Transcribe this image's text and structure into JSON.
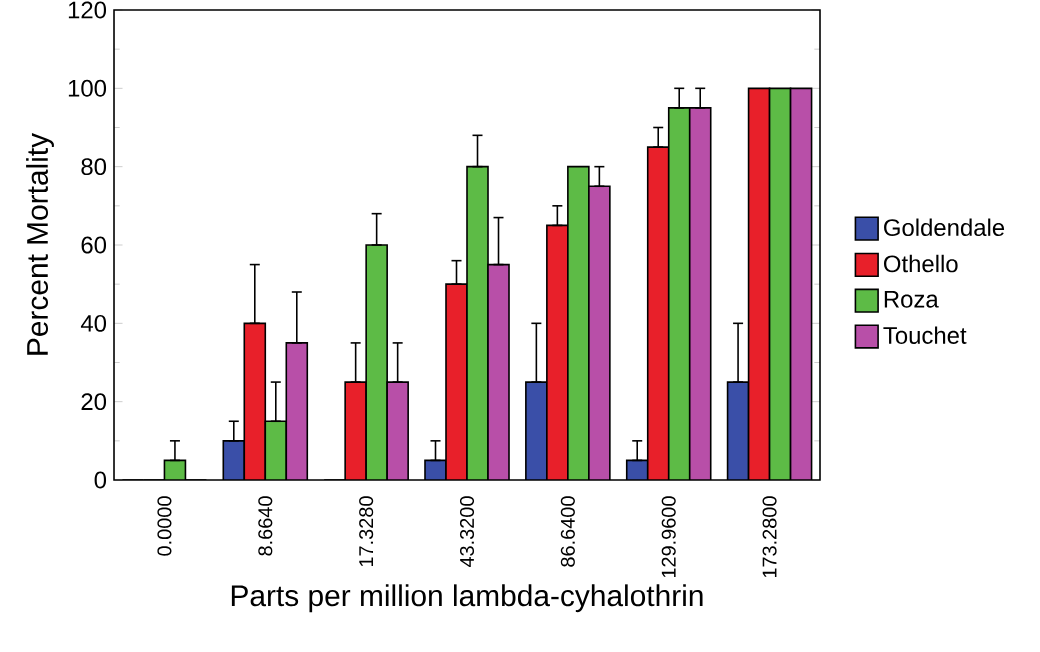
{
  "chart_data": {
    "type": "bar",
    "xlabel": "Parts per million lambda-cyhalothrin",
    "ylabel": "Percent Mortality",
    "categories": [
      "0.0000",
      "8.6640",
      "17.3280",
      "43.3200",
      "86.6400",
      "129.9600",
      "173.2800"
    ],
    "series": [
      {
        "name": "Goldendale",
        "color": "#3a4fa8",
        "values": [
          0,
          10,
          0,
          5,
          25,
          5,
          25
        ],
        "errors": [
          null,
          [
            10,
            15
          ],
          null,
          [
            5,
            10
          ],
          [
            25,
            40
          ],
          [
            5,
            10
          ],
          [
            25,
            40
          ]
        ]
      },
      {
        "name": "Othello",
        "color": "#e8202a",
        "values": [
          0,
          40,
          25,
          50,
          65,
          85,
          100
        ],
        "errors": [
          null,
          [
            40,
            55
          ],
          [
            25,
            35
          ],
          [
            50,
            56
          ],
          [
            65,
            70
          ],
          [
            85,
            90
          ],
          null
        ]
      },
      {
        "name": "Roza",
        "color": "#5dbb46",
        "values": [
          5,
          15,
          60,
          80,
          80,
          95,
          100
        ],
        "errors": [
          [
            5,
            10
          ],
          [
            15,
            25
          ],
          [
            60,
            68
          ],
          [
            80,
            88
          ],
          null,
          [
            95,
            100
          ],
          null
        ]
      },
      {
        "name": "Touchet",
        "color": "#b84fa8",
        "values": [
          0,
          35,
          25,
          55,
          75,
          95,
          100
        ],
        "errors": [
          null,
          [
            35,
            48
          ],
          [
            25,
            35
          ],
          [
            55,
            67
          ],
          [
            75,
            80
          ],
          [
            95,
            100
          ],
          null
        ]
      }
    ],
    "ylim": [
      0,
      120
    ],
    "yticks": [
      0,
      20,
      40,
      60,
      80,
      100,
      120
    ],
    "legend": "right",
    "grid": false
  }
}
